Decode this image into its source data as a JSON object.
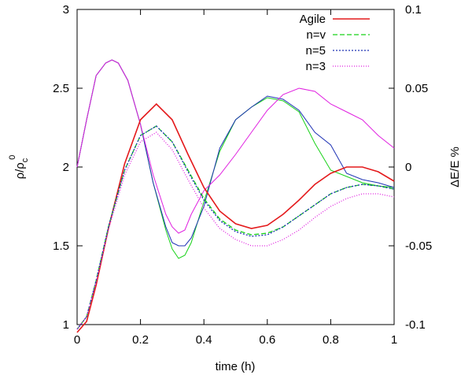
{
  "chart_data": {
    "type": "line",
    "xlabel": "time (h)",
    "ylabel": {
      "base": "ρ/ρ",
      "sub": "c",
      "sup": "0"
    },
    "y2label": "ΔE/E %",
    "xlim": [
      0,
      1
    ],
    "ylim": [
      1,
      3
    ],
    "y2lim": [
      -0.1,
      0.1
    ],
    "xticks": [
      "0",
      "0.2",
      "0.4",
      "0.6",
      "0.8",
      "1"
    ],
    "yticks": [
      "1",
      "1.5",
      "2",
      "2.5",
      "3"
    ],
    "y2ticks": [
      "-0.1",
      "-0.05",
      "0",
      "0.05",
      "0.1"
    ],
    "grid": false,
    "legend_position": "top-right",
    "series": [
      {
        "name": "Agile",
        "color": "#e41a1c",
        "dash": "solid",
        "axis": "left",
        "x": [
          0,
          0.03,
          0.06,
          0.1,
          0.15,
          0.2,
          0.25,
          0.3,
          0.35,
          0.4,
          0.45,
          0.5,
          0.55,
          0.6,
          0.65,
          0.7,
          0.75,
          0.8,
          0.85,
          0.9,
          0.95,
          1.0
        ],
        "y": [
          0.95,
          1.02,
          1.25,
          1.62,
          2.02,
          2.3,
          2.4,
          2.3,
          2.08,
          1.87,
          1.72,
          1.64,
          1.61,
          1.63,
          1.7,
          1.79,
          1.89,
          1.96,
          2.0,
          2.0,
          1.97,
          1.91
        ]
      },
      {
        "name": "n=v",
        "color": "#19d219",
        "dash": "6,3",
        "axis": "left",
        "x": [
          0,
          0.03,
          0.06,
          0.1,
          0.15,
          0.2,
          0.25,
          0.3,
          0.35,
          0.4,
          0.45,
          0.5,
          0.55,
          0.6,
          0.65,
          0.7,
          0.75,
          0.8,
          0.85,
          0.9,
          0.95,
          1.0
        ],
        "y": [
          0.97,
          1.05,
          1.28,
          1.63,
          1.98,
          2.2,
          2.26,
          2.16,
          1.98,
          1.8,
          1.67,
          1.6,
          1.57,
          1.58,
          1.62,
          1.69,
          1.76,
          1.83,
          1.87,
          1.89,
          1.88,
          1.86
        ]
      },
      {
        "name": "n=5",
        "color": "#1f33b5",
        "dash": "2,2",
        "axis": "left",
        "x": [
          0,
          0.03,
          0.06,
          0.1,
          0.15,
          0.2,
          0.25,
          0.3,
          0.35,
          0.4,
          0.45,
          0.5,
          0.55,
          0.6,
          0.65,
          0.7,
          0.75,
          0.8,
          0.85,
          0.9,
          0.95,
          1.0
        ],
        "y": [
          0.97,
          1.05,
          1.28,
          1.63,
          1.98,
          2.2,
          2.26,
          2.16,
          1.97,
          1.79,
          1.66,
          1.59,
          1.56,
          1.57,
          1.62,
          1.69,
          1.76,
          1.83,
          1.87,
          1.89,
          1.88,
          1.86
        ]
      },
      {
        "name": "n=3",
        "color": "#e020e0",
        "dash": "1,2",
        "axis": "left",
        "x": [
          0,
          0.03,
          0.06,
          0.1,
          0.15,
          0.2,
          0.25,
          0.3,
          0.35,
          0.4,
          0.45,
          0.5,
          0.55,
          0.6,
          0.65,
          0.7,
          0.75,
          0.8,
          0.85,
          0.9,
          0.95,
          1.0
        ],
        "y": [
          0.97,
          1.05,
          1.27,
          1.61,
          1.95,
          2.16,
          2.22,
          2.11,
          1.92,
          1.74,
          1.61,
          1.54,
          1.5,
          1.5,
          1.54,
          1.6,
          1.68,
          1.75,
          1.8,
          1.83,
          1.83,
          1.81
        ]
      }
    ],
    "energy_series": [
      {
        "color": "#19d219",
        "axis": "right",
        "x": [
          0,
          0.03,
          0.06,
          0.09,
          0.11,
          0.13,
          0.16,
          0.2,
          0.24,
          0.28,
          0.3,
          0.32,
          0.34,
          0.36,
          0.4,
          0.45,
          0.5,
          0.55,
          0.6,
          0.65,
          0.7,
          0.75,
          0.8,
          0.85,
          0.9,
          0.95,
          1.0
        ],
        "y": [
          0,
          0.03,
          0.058,
          0.066,
          0.068,
          0.066,
          0.055,
          0.027,
          -0.01,
          -0.04,
          -0.052,
          -0.058,
          -0.056,
          -0.048,
          -0.022,
          0.01,
          0.03,
          0.038,
          0.044,
          0.042,
          0.035,
          0.015,
          -0.002,
          -0.006,
          -0.01,
          -0.012,
          -0.013
        ]
      },
      {
        "color": "#1f33b5",
        "axis": "right",
        "x": [
          0,
          0.03,
          0.06,
          0.09,
          0.11,
          0.13,
          0.16,
          0.2,
          0.24,
          0.28,
          0.3,
          0.32,
          0.34,
          0.36,
          0.4,
          0.45,
          0.5,
          0.55,
          0.6,
          0.65,
          0.7,
          0.75,
          0.8,
          0.85,
          0.9,
          0.95,
          1.0
        ],
        "y": [
          0,
          0.03,
          0.058,
          0.066,
          0.068,
          0.066,
          0.055,
          0.027,
          -0.01,
          -0.038,
          -0.048,
          -0.05,
          -0.05,
          -0.045,
          -0.025,
          0.012,
          0.03,
          0.038,
          0.045,
          0.043,
          0.036,
          0.022,
          0.014,
          -0.004,
          -0.008,
          -0.01,
          -0.013
        ]
      },
      {
        "color": "#e020e0",
        "axis": "right",
        "x": [
          0,
          0.03,
          0.06,
          0.09,
          0.11,
          0.13,
          0.16,
          0.2,
          0.24,
          0.28,
          0.3,
          0.32,
          0.34,
          0.36,
          0.4,
          0.45,
          0.5,
          0.55,
          0.6,
          0.65,
          0.7,
          0.75,
          0.8,
          0.85,
          0.9,
          0.95,
          1.0
        ],
        "y": [
          0,
          0.03,
          0.058,
          0.066,
          0.068,
          0.066,
          0.055,
          0.027,
          -0.005,
          -0.03,
          -0.038,
          -0.042,
          -0.04,
          -0.03,
          -0.015,
          -0.005,
          0.008,
          0.022,
          0.036,
          0.046,
          0.05,
          0.048,
          0.04,
          0.035,
          0.03,
          0.02,
          0.012
        ]
      }
    ]
  }
}
